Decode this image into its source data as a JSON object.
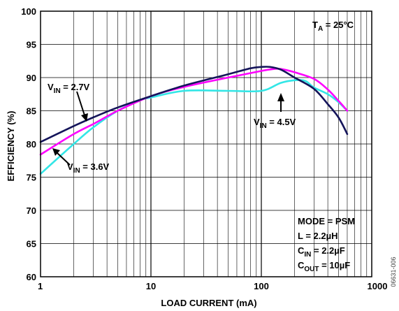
{
  "chart_data": {
    "type": "line",
    "xlabel": "LOAD CURRENT (mA)",
    "ylabel": "EFFICIENCY (%)",
    "x_scale": "log",
    "xlim": [
      1,
      1000
    ],
    "ylim": [
      60,
      100
    ],
    "x_ticks": [
      1,
      10,
      100,
      1000
    ],
    "x_tick_labels": [
      "1",
      "10",
      "100",
      "1000"
    ],
    "y_ticks": [
      60,
      65,
      70,
      75,
      80,
      85,
      90,
      95,
      100
    ],
    "y_tick_labels": [
      "60",
      "65",
      "70",
      "75",
      "80",
      "85",
      "90",
      "95",
      "100"
    ],
    "grid": true,
    "series": [
      {
        "name": "VIN = 2.7V",
        "color": "#14145a",
        "x": [
          1,
          2,
          3,
          5,
          10,
          20,
          50,
          80,
          100,
          120,
          150,
          200,
          300,
          400,
          500,
          600
        ],
        "y": [
          80.3,
          82.7,
          84.0,
          85.5,
          87.2,
          88.8,
          90.5,
          91.4,
          91.6,
          91.6,
          91.2,
          90.0,
          88.3,
          86.0,
          84.0,
          81.5
        ]
      },
      {
        "name": "VIN = 3.6V",
        "color": "#ff00ff",
        "x": [
          1,
          2,
          3,
          5,
          10,
          20,
          50,
          100,
          130,
          150,
          200,
          300,
          400,
          500,
          600
        ],
        "y": [
          78.4,
          81.5,
          83.0,
          85.0,
          87.2,
          88.6,
          90.0,
          91.0,
          91.3,
          91.3,
          90.8,
          89.8,
          88.2,
          86.5,
          85.0
        ]
      },
      {
        "name": "VIN = 4.5V",
        "color": "#33e6e6",
        "x": [
          1,
          2,
          3,
          5,
          8,
          10,
          20,
          50,
          100,
          150,
          200,
          250,
          300,
          400,
          500,
          600
        ],
        "y": [
          75.5,
          80.0,
          82.5,
          85.0,
          86.6,
          87.0,
          88.0,
          88.0,
          88.0,
          89.2,
          89.6,
          89.5,
          88.5,
          87.5,
          86.3,
          85.0
        ]
      }
    ],
    "annotations": {
      "vin27": {
        "pre": "V",
        "sub": "IN",
        "post": " = 2.7V"
      },
      "vin36": {
        "pre": "V",
        "sub": "IN",
        "post": " = 3.6V"
      },
      "vin45": {
        "pre": "V",
        "sub": "IN",
        "post": " = 4.5V"
      },
      "temp": {
        "pre": "T",
        "sub": "A",
        "post": " = 25°C"
      },
      "conditions": [
        {
          "pre": "MODE = PSM",
          "sub": "",
          "post": ""
        },
        {
          "pre": "L = 2.2µH",
          "sub": "",
          "post": ""
        },
        {
          "pre": "C",
          "sub": "IN",
          "post": " = 2.2µF"
        },
        {
          "pre": "C",
          "sub": "OUT",
          "post": " = 10µF"
        }
      ]
    },
    "figure_id": "06631-006"
  }
}
